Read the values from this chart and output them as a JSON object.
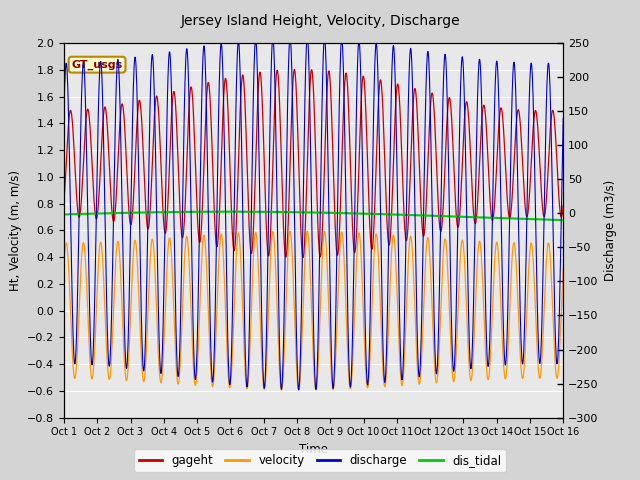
{
  "title": "Jersey Island Height, Velocity, Discharge",
  "xlabel": "Time",
  "ylabel_left": "Ht, Velocity (m, m/s)",
  "ylabel_right": "Discharge (m3/s)",
  "ylim_left": [
    -0.8,
    2.0
  ],
  "ylim_right": [
    -300,
    250
  ],
  "xtick_labels": [
    "Oct 1",
    "Oct 2",
    "Oct 3",
    "Oct 4",
    "Oct 5",
    "Oct 6",
    "Oct 7",
    "Oct 8",
    "Oct 9",
    "Oct 10",
    "Oct 11",
    "Oct 12",
    "Oct 13",
    "Oct 14",
    "Oct 15",
    "Oct 16"
  ],
  "yticks_left": [
    -0.8,
    -0.6,
    -0.4,
    -0.2,
    0.0,
    0.2,
    0.4,
    0.6,
    0.8,
    1.0,
    1.2,
    1.4,
    1.6,
    1.8,
    2.0
  ],
  "yticks_right": [
    -300,
    -250,
    -200,
    -150,
    -100,
    -50,
    0,
    50,
    100,
    150,
    200,
    250
  ],
  "legend_labels": [
    "gageht",
    "velocity",
    "discharge",
    "dis_tidal"
  ],
  "legend_colors": [
    "#cc0000",
    "#ff9900",
    "#0000cc",
    "#00cc00"
  ],
  "gt_usgs_label": "GT_usgs",
  "background_color": "#d4d4d4",
  "plot_bg_color": "#e8e8e8",
  "grid_color": "#ffffff",
  "gageht_color": "#cc0000",
  "velocity_color": "#ff9900",
  "discharge_color": "#0000cc",
  "dis_tidal_color": "#00cc00",
  "n_days": 15,
  "tide_period_hours": 12.42,
  "gageht_mean": 1.1,
  "gageht_amp_base": 0.55,
  "gageht_amp_mod": 0.18,
  "velocity_amp_base": 0.55,
  "velocity_amp_mod": 0.05,
  "discharge_amp_base": 240,
  "discharge_amp_mod": 20,
  "dis_tidal_mean": 0.7,
  "dis_tidal_amp": 0.04,
  "spring_neap_period_days": 14.5,
  "phase_shift": -0.8
}
